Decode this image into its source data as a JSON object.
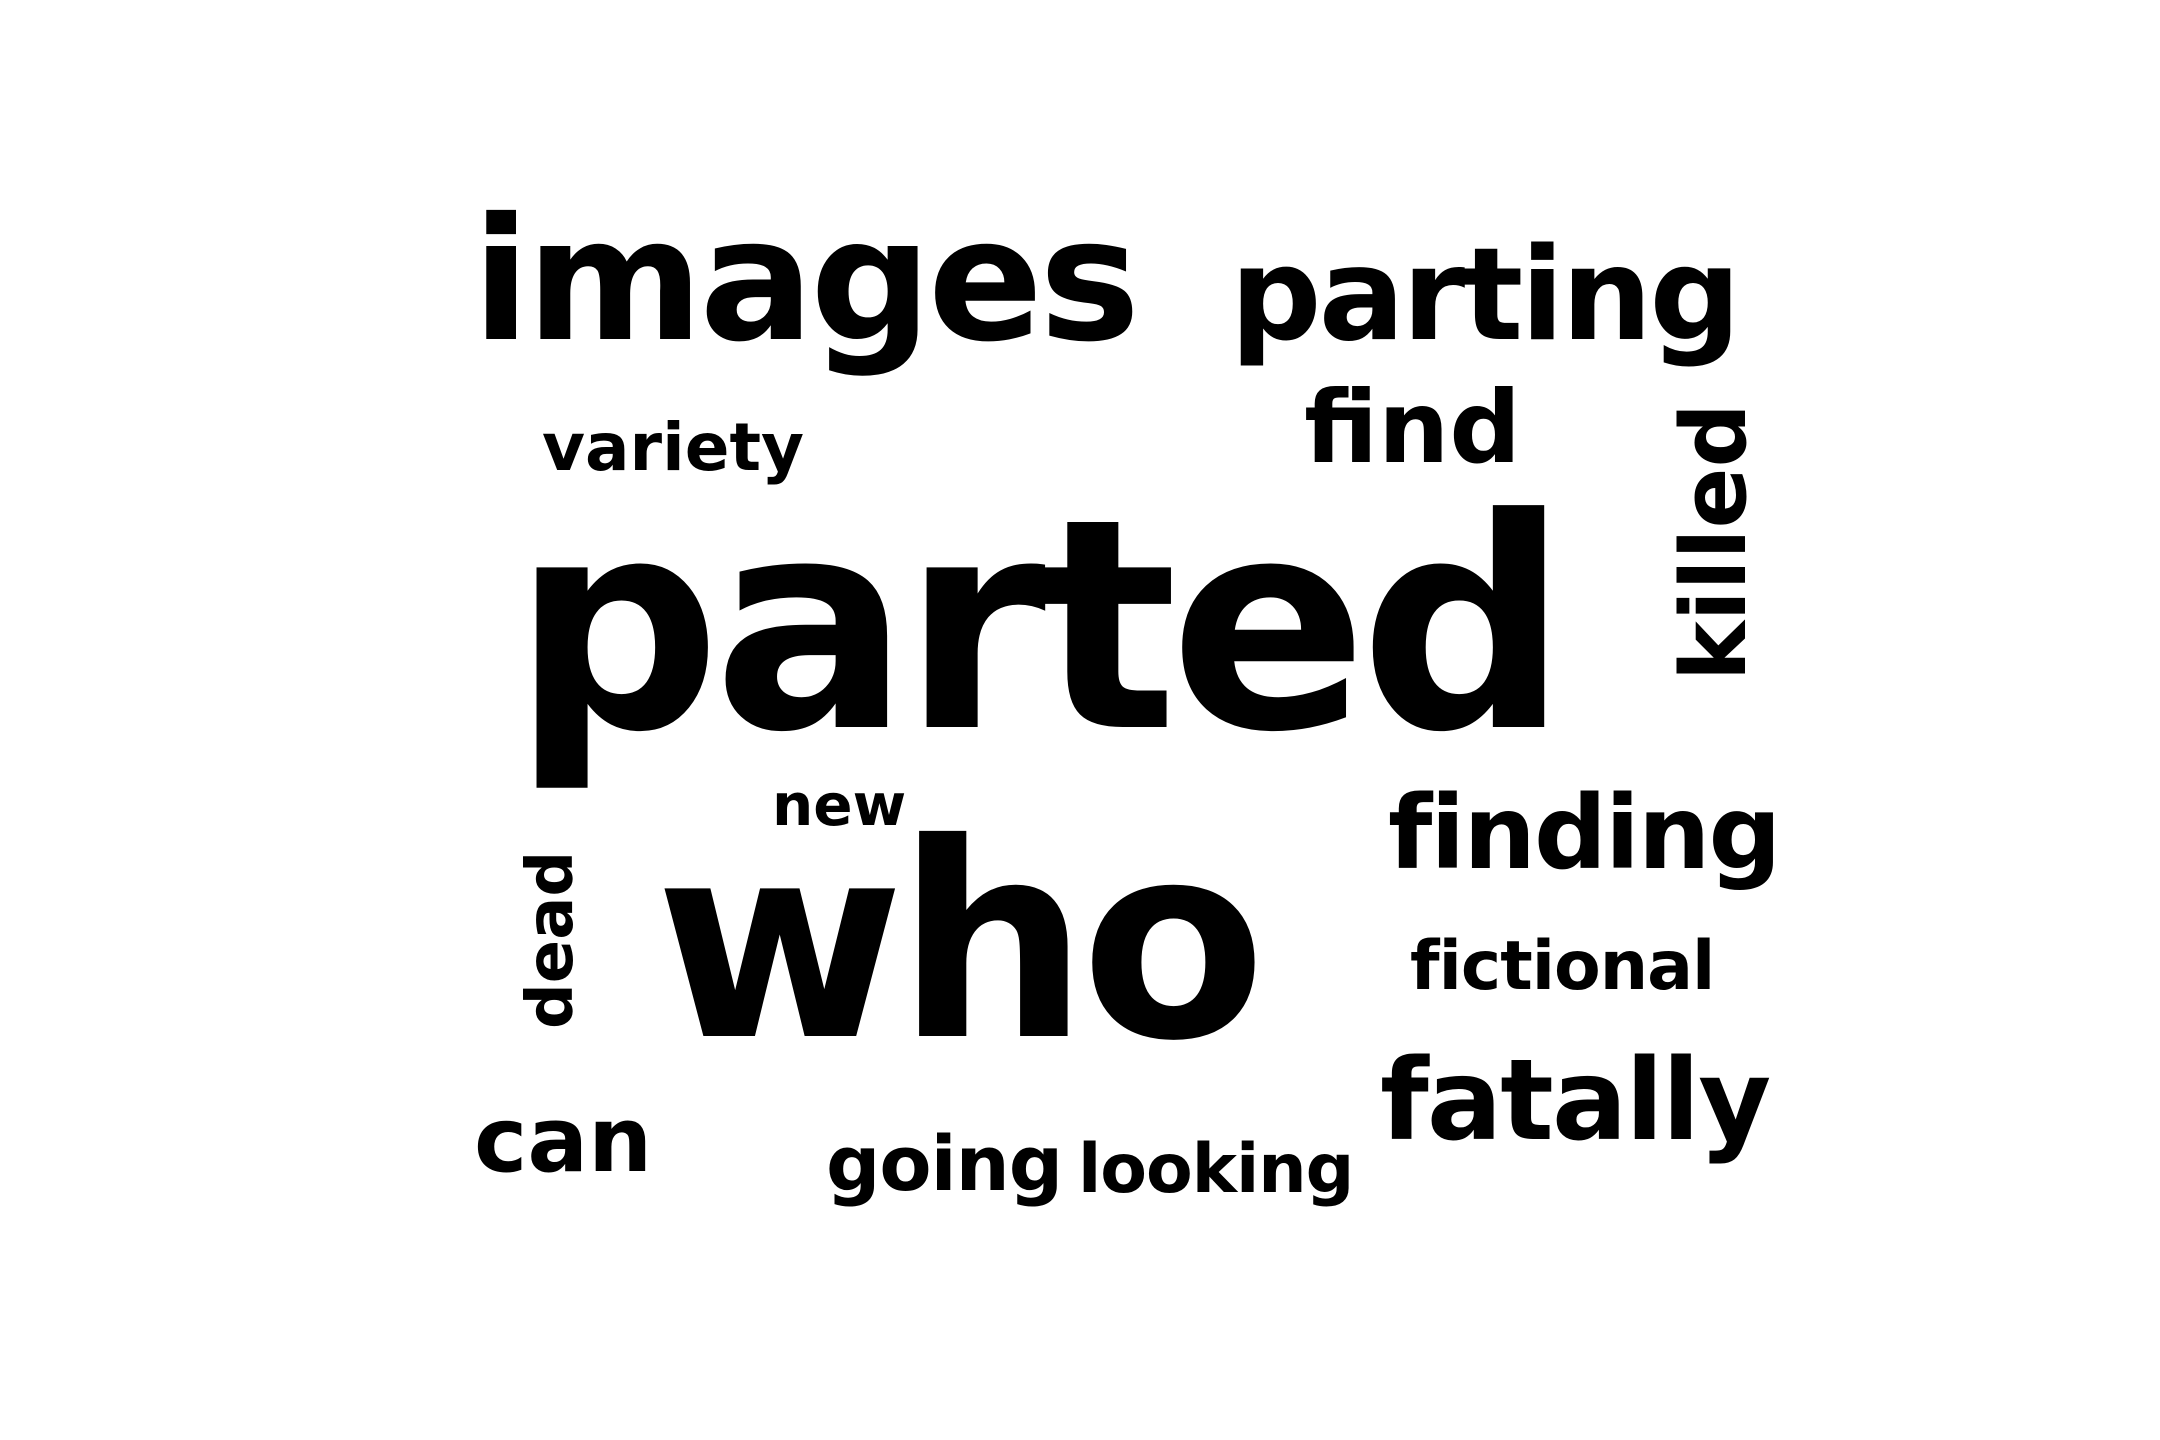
{
  "word_cloud": {
    "text_color": "#000000",
    "background": "#ffffff",
    "words": [
      {
        "text": "images",
        "orientation": "horizontal"
      },
      {
        "text": "parting",
        "orientation": "horizontal"
      },
      {
        "text": "variety",
        "orientation": "horizontal"
      },
      {
        "text": "find",
        "orientation": "horizontal"
      },
      {
        "text": "killed",
        "orientation": "vertical"
      },
      {
        "text": "parted",
        "orientation": "horizontal"
      },
      {
        "text": "new",
        "orientation": "horizontal"
      },
      {
        "text": "finding",
        "orientation": "horizontal"
      },
      {
        "text": "dead",
        "orientation": "vertical"
      },
      {
        "text": "who",
        "orientation": "horizontal"
      },
      {
        "text": "fictional",
        "orientation": "horizontal"
      },
      {
        "text": "fatally",
        "orientation": "horizontal"
      },
      {
        "text": "can",
        "orientation": "horizontal"
      },
      {
        "text": "going",
        "orientation": "horizontal"
      },
      {
        "text": "looking",
        "orientation": "horizontal"
      }
    ]
  }
}
